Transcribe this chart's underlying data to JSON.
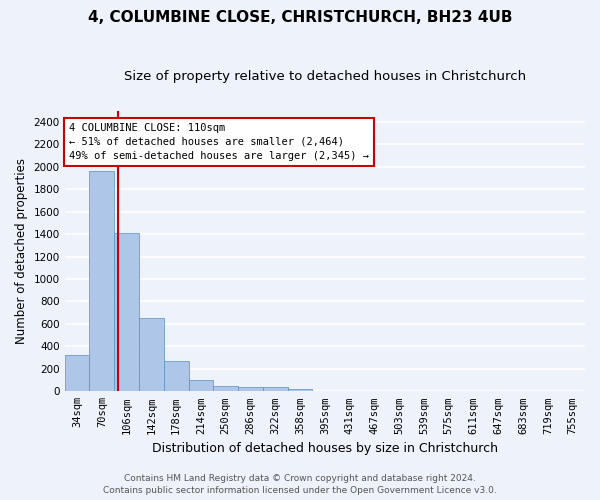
{
  "title1": "4, COLUMBINE CLOSE, CHRISTCHURCH, BH23 4UB",
  "title2": "Size of property relative to detached houses in Christchurch",
  "xlabel": "Distribution of detached houses by size in Christchurch",
  "ylabel": "Number of detached properties",
  "bar_labels": [
    "34sqm",
    "70sqm",
    "106sqm",
    "142sqm",
    "178sqm",
    "214sqm",
    "250sqm",
    "286sqm",
    "322sqm",
    "358sqm",
    "395sqm",
    "431sqm",
    "467sqm",
    "503sqm",
    "539sqm",
    "575sqm",
    "611sqm",
    "647sqm",
    "683sqm",
    "719sqm",
    "755sqm"
  ],
  "bar_values": [
    325,
    1960,
    1410,
    650,
    270,
    100,
    47,
    42,
    38,
    22,
    0,
    0,
    0,
    0,
    0,
    0,
    0,
    0,
    0,
    0,
    0
  ],
  "bar_color": "#aec6e8",
  "bar_edgecolor": "#5a8fc2",
  "background_color": "#eef2fb",
  "grid_color": "#ffffff",
  "annotation_text": "4 COLUMBINE CLOSE: 110sqm\n← 51% of detached houses are smaller (2,464)\n49% of semi-detached houses are larger (2,345) →",
  "annotation_box_color": "#ffffff",
  "annotation_box_edgecolor": "#cc0000",
  "vline_x": 2.15,
  "vline_color": "#cc0000",
  "ylim": [
    0,
    2500
  ],
  "yticks": [
    0,
    200,
    400,
    600,
    800,
    1000,
    1200,
    1400,
    1600,
    1800,
    2000,
    2200,
    2400
  ],
  "footer1": "Contains HM Land Registry data © Crown copyright and database right 2024.",
  "footer2": "Contains public sector information licensed under the Open Government Licence v3.0.",
  "title1_fontsize": 11,
  "title2_fontsize": 9.5,
  "xlabel_fontsize": 9,
  "ylabel_fontsize": 8.5,
  "tick_fontsize": 7.5,
  "annotation_fontsize": 7.5,
  "footer_fontsize": 6.5
}
